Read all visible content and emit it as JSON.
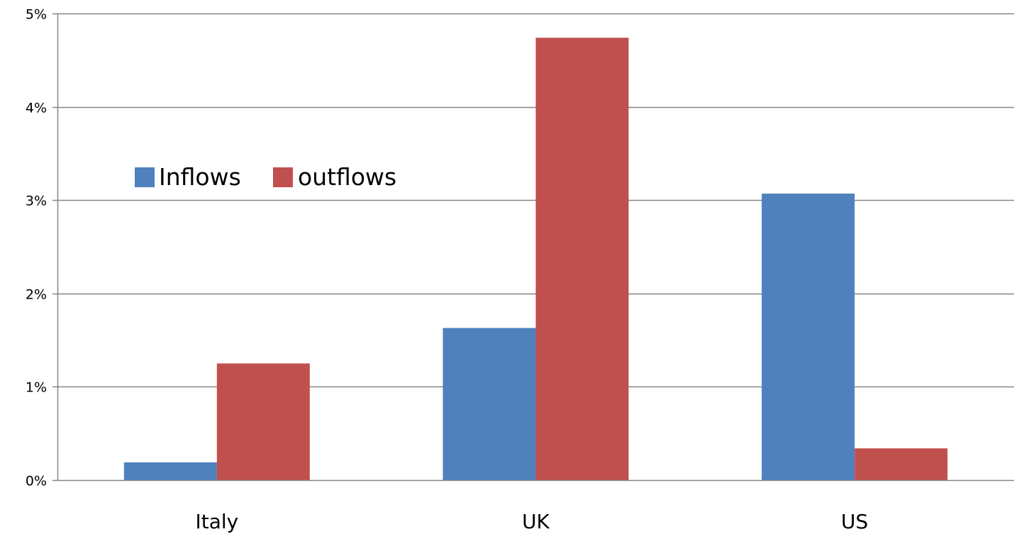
{
  "chart_data": {
    "type": "bar",
    "title": "",
    "xlabel": "",
    "ylabel": "",
    "categories": [
      "Italy",
      "UK",
      "US"
    ],
    "series": [
      {
        "name": "Inflows",
        "values": [
          0.19,
          1.63,
          3.07
        ]
      },
      {
        "name": "outflows",
        "values": [
          1.25,
          4.74,
          0.34
        ]
      }
    ],
    "ylim": [
      0,
      5
    ],
    "yticks": [
      0,
      1,
      2,
      3,
      4,
      5
    ],
    "ytick_labels": [
      "0%",
      "1%",
      "2%",
      "3%",
      "4%",
      "5%"
    ],
    "grid": true,
    "legend_position": "upper-left inside",
    "colors": {
      "Inflows": "#4f81bd",
      "outflows": "#c0504d",
      "grid": "#868686",
      "axis": "#868686"
    }
  }
}
